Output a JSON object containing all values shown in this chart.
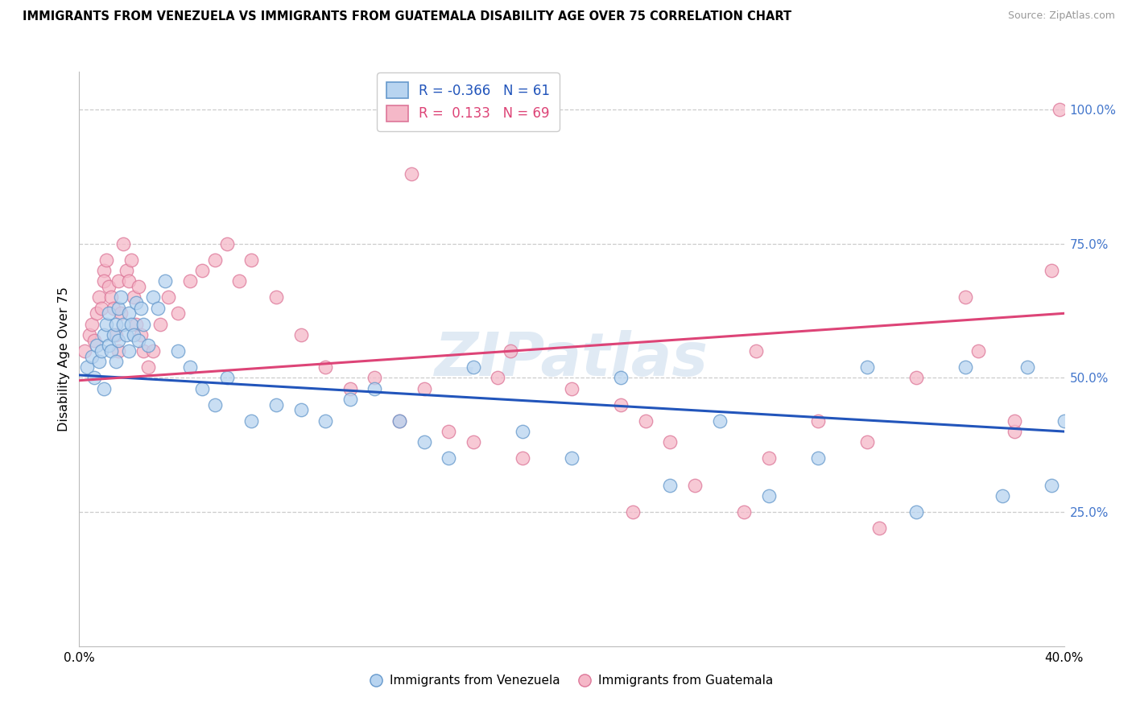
{
  "title": "IMMIGRANTS FROM VENEZUELA VS IMMIGRANTS FROM GUATEMALA DISABILITY AGE OVER 75 CORRELATION CHART",
  "source": "Source: ZipAtlas.com",
  "ylabel": "Disability Age Over 75",
  "xlim": [
    0.0,
    40.0
  ],
  "ylim": [
    0.0,
    107.0
  ],
  "legend_r1": "-0.366",
  "legend_n1": "61",
  "legend_r2": "0.133",
  "legend_n2": "69",
  "color_ven_fill": "#b8d4f0",
  "color_ven_edge": "#6699cc",
  "color_ven_line": "#2255bb",
  "color_guat_fill": "#f5b8c8",
  "color_guat_edge": "#dd7799",
  "color_guat_line": "#dd4477",
  "ven_line_x0": 0,
  "ven_line_y0": 50.5,
  "ven_line_x1": 40,
  "ven_line_y1": 40.0,
  "guat_line_x0": 0,
  "guat_line_y0": 49.5,
  "guat_line_x1": 40,
  "guat_line_y1": 62.0,
  "venezuela_x": [
    0.3,
    0.5,
    0.6,
    0.7,
    0.8,
    0.9,
    1.0,
    1.0,
    1.1,
    1.2,
    1.2,
    1.3,
    1.4,
    1.5,
    1.5,
    1.6,
    1.6,
    1.7,
    1.8,
    1.9,
    2.0,
    2.0,
    2.1,
    2.2,
    2.3,
    2.4,
    2.5,
    2.6,
    2.8,
    3.0,
    3.2,
    3.5,
    4.0,
    4.5,
    5.0,
    5.5,
    6.0,
    7.0,
    8.0,
    9.0,
    10.0,
    11.0,
    12.0,
    13.0,
    14.0,
    15.0,
    16.0,
    18.0,
    20.0,
    22.0,
    24.0,
    26.0,
    28.0,
    30.0,
    32.0,
    34.0,
    36.0,
    37.5,
    38.5,
    39.5,
    40.0
  ],
  "venezuela_y": [
    52,
    54,
    50,
    56,
    53,
    55,
    58,
    48,
    60,
    56,
    62,
    55,
    58,
    60,
    53,
    63,
    57,
    65,
    60,
    58,
    62,
    55,
    60,
    58,
    64,
    57,
    63,
    60,
    56,
    65,
    63,
    68,
    55,
    52,
    48,
    45,
    50,
    42,
    45,
    44,
    42,
    46,
    48,
    42,
    38,
    35,
    52,
    40,
    35,
    50,
    30,
    42,
    28,
    35,
    52,
    25,
    52,
    28,
    52,
    30,
    42
  ],
  "guatemala_x": [
    0.2,
    0.4,
    0.5,
    0.6,
    0.7,
    0.8,
    0.9,
    1.0,
    1.0,
    1.1,
    1.2,
    1.3,
    1.4,
    1.5,
    1.6,
    1.6,
    1.7,
    1.8,
    1.9,
    2.0,
    2.1,
    2.2,
    2.3,
    2.4,
    2.5,
    2.6,
    2.8,
    3.0,
    3.3,
    3.6,
    4.0,
    4.5,
    5.0,
    5.5,
    6.0,
    6.5,
    7.0,
    8.0,
    9.0,
    10.0,
    11.0,
    12.0,
    13.0,
    14.0,
    15.0,
    16.0,
    17.0,
    18.0,
    20.0,
    22.0,
    23.0,
    24.0,
    25.0,
    27.0,
    28.0,
    30.0,
    32.0,
    34.0,
    36.0,
    38.0,
    39.5,
    13.5,
    17.5,
    22.5,
    27.5,
    32.5,
    36.5,
    38.0,
    39.8
  ],
  "guatemala_y": [
    55,
    58,
    60,
    57,
    62,
    65,
    63,
    70,
    68,
    72,
    67,
    65,
    63,
    58,
    55,
    68,
    62,
    75,
    70,
    68,
    72,
    65,
    60,
    67,
    58,
    55,
    52,
    55,
    60,
    65,
    62,
    68,
    70,
    72,
    75,
    68,
    72,
    65,
    58,
    52,
    48,
    50,
    42,
    48,
    40,
    38,
    50,
    35,
    48,
    45,
    42,
    38,
    30,
    25,
    35,
    42,
    38,
    50,
    65,
    40,
    70,
    88,
    55,
    25,
    55,
    22,
    55,
    42,
    100
  ]
}
